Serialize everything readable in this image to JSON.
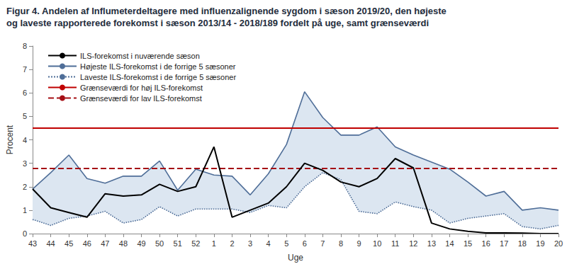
{
  "chart_data": {
    "type": "line",
    "title": "Figur 4. Andelen af Influmeterdeltagere med influenzalignende sygdom i sæson 2019/20, den højeste\nog laveste rapporterede forekomst i sæson 2013/14 - 2018/189 fordelt på uge, samt grænseværdi",
    "x_label": "Uge",
    "y_label": "Procent",
    "categories": [
      "43",
      "44",
      "45",
      "46",
      "47",
      "48",
      "49",
      "50",
      "51",
      "52",
      "1",
      "2",
      "3",
      "4",
      "5",
      "6",
      "7",
      "8",
      "9",
      "10",
      "11",
      "12",
      "13",
      "14",
      "15",
      "16",
      "17",
      "18",
      "19",
      "20"
    ],
    "series": [
      {
        "name": "ILS-forekomst i nuværende sæson",
        "color": "#000000",
        "line_style": "solid",
        "values": [
          1.9,
          1.1,
          0.9,
          0.7,
          1.7,
          1.6,
          1.65,
          2.1,
          1.8,
          2.0,
          3.7,
          0.7,
          1.0,
          1.3,
          2.0,
          3.0,
          2.7,
          2.2,
          2.0,
          2.35,
          3.2,
          2.8,
          0.45,
          0.2,
          0.1,
          0.03,
          0.03,
          0.02,
          0.0,
          0.0
        ]
      },
      {
        "name": "Højeste ILS-forekomst i de forrige 5 sæsoner",
        "color": "#4f6e98",
        "line_style": "solid",
        "values": [
          1.9,
          2.6,
          3.35,
          2.35,
          2.15,
          2.45,
          2.45,
          3.1,
          1.85,
          2.75,
          2.5,
          2.45,
          1.65,
          2.55,
          3.8,
          6.05,
          4.95,
          4.2,
          4.2,
          4.55,
          3.7,
          3.35,
          3.05,
          2.75,
          2.2,
          1.6,
          1.8,
          1.0,
          1.1,
          1.0
        ]
      },
      {
        "name": "Laveste ILS-forekomst i de forrige 5 sæsoner",
        "color": "#4f6e98",
        "line_style": "dotted",
        "values": [
          0.6,
          0.35,
          0.65,
          0.75,
          0.95,
          0.45,
          0.6,
          1.15,
          0.75,
          1.05,
          1.05,
          1.05,
          0.9,
          1.2,
          1.1,
          2.0,
          2.6,
          2.3,
          0.95,
          0.85,
          1.35,
          1.15,
          1.0,
          0.45,
          0.65,
          0.75,
          0.85,
          0.3,
          0.2,
          0.35
        ]
      }
    ],
    "thresholds": [
      {
        "name": "Grænseværdi for høj ILS-forekomst",
        "value": 4.5,
        "color": "#c00000",
        "line_style": "solid"
      },
      {
        "name": "Grænseværdi for lav ILS-forekomst",
        "value": 2.8,
        "color": "#a50f15",
        "line_style": "dashed"
      }
    ],
    "ylim": [
      0,
      8
    ],
    "yticks": [
      0,
      1,
      2,
      3,
      4,
      5,
      6,
      7,
      8
    ],
    "grid": false,
    "legend": "top-left"
  }
}
